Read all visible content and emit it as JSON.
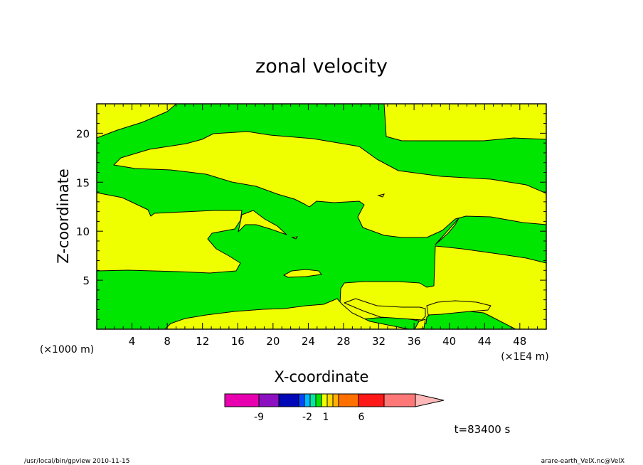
{
  "chart_data": {
    "type": "heatmap",
    "title": "zonal velocity",
    "xlabel": "X-coordinate",
    "ylabel": "Z-coordinate",
    "x_unit_left": "(×1000 m)",
    "x_unit_right": "(×1E4 m)",
    "xlim": [
      0,
      51
    ],
    "ylim": [
      0,
      23
    ],
    "xticks": [
      "4",
      "8",
      "12",
      "16",
      "20",
      "24",
      "28",
      "32",
      "36",
      "40",
      "44",
      "48"
    ],
    "yticks": [
      "5",
      "10",
      "15",
      "20"
    ],
    "time_label": "t=83400 s",
    "colors": {
      "positive_region": "#f0ff00",
      "negative_region": "#00e600"
    },
    "colorbar": {
      "colors": [
        "#e800b0",
        "#8c10c0",
        "#0008b8",
        "#0048ff",
        "#00b8ff",
        "#00e8a0",
        "#00e600",
        "#f0ff00",
        "#ffd800",
        "#ffb000",
        "#ff7000",
        "#ff1818",
        "#ff7878",
        "#ffb8b8"
      ],
      "tick_labels": [
        "-9",
        "-2",
        "1",
        "6"
      ]
    }
  },
  "footer": {
    "left": "/usr/local/bin/gpview  2010-11-15",
    "right": "arare-earth_VelX.nc@VelX"
  }
}
